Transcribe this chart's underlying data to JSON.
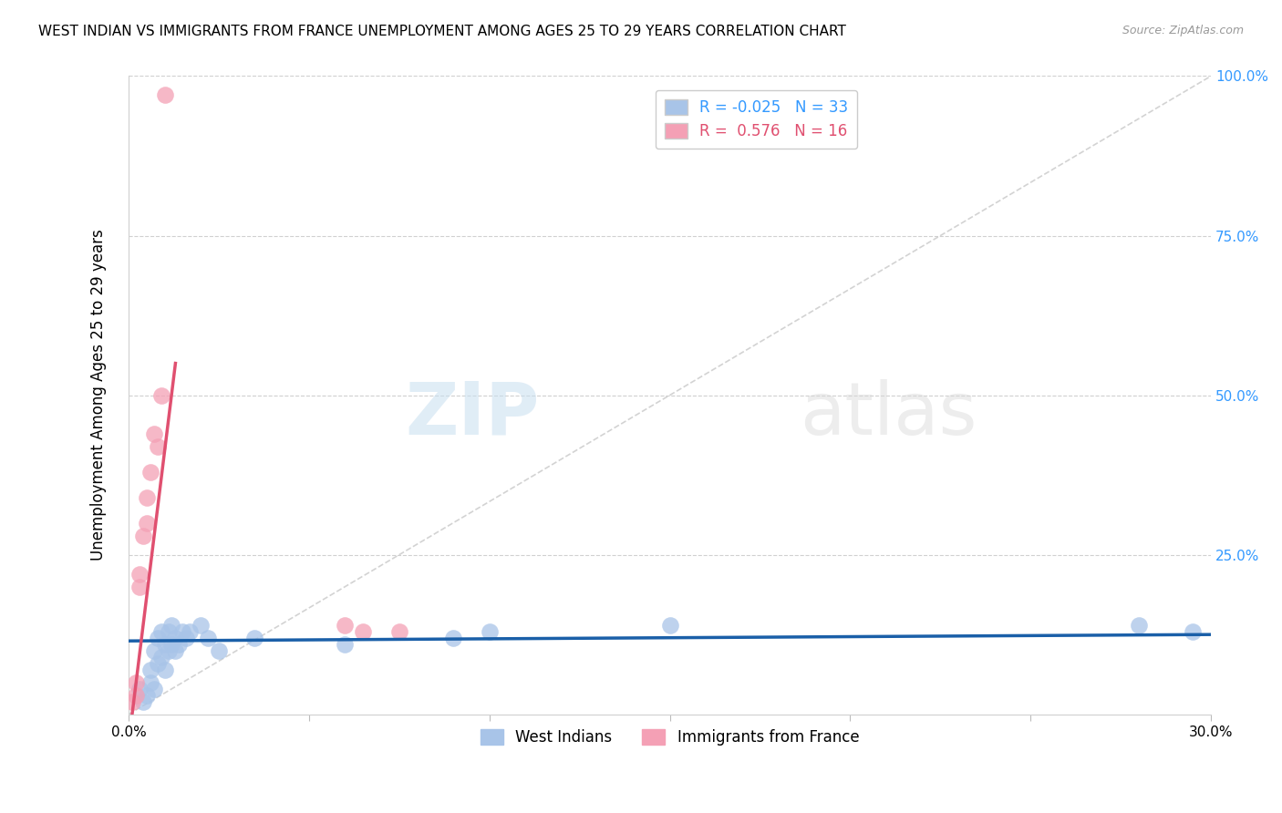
{
  "title": "WEST INDIAN VS IMMIGRANTS FROM FRANCE UNEMPLOYMENT AMONG AGES 25 TO 29 YEARS CORRELATION CHART",
  "source": "Source: ZipAtlas.com",
  "xlabel": "",
  "ylabel": "Unemployment Among Ages 25 to 29 years",
  "watermark_zip": "ZIP",
  "watermark_atlas": "atlas",
  "legend_labels": [
    "West Indians",
    "Immigrants from France"
  ],
  "west_indian_R": -0.025,
  "west_indian_N": 33,
  "france_R": 0.576,
  "france_N": 16,
  "west_indian_color": "#a8c4e8",
  "france_color": "#f4a0b5",
  "west_indian_line_color": "#1a5fa8",
  "france_line_color": "#e05070",
  "diagonal_line_color": "#c8c8c8",
  "xlim": [
    0.0,
    0.3
  ],
  "ylim": [
    0.0,
    1.0
  ],
  "x_ticks": [
    0.0,
    0.05,
    0.1,
    0.15,
    0.2,
    0.25,
    0.3
  ],
  "y_ticks_right": [
    0.0,
    0.25,
    0.5,
    0.75,
    1.0
  ],
  "y_tick_labels_right": [
    "",
    "25.0%",
    "50.0%",
    "75.0%",
    "100.0%"
  ],
  "west_indian_x": [
    0.003,
    0.004,
    0.005,
    0.006,
    0.006,
    0.007,
    0.007,
    0.008,
    0.008,
    0.009,
    0.009,
    0.01,
    0.01,
    0.011,
    0.011,
    0.012,
    0.012,
    0.013,
    0.013,
    0.014,
    0.015,
    0.016,
    0.017,
    0.02,
    0.022,
    0.025,
    0.035,
    0.06,
    0.09,
    0.1,
    0.15,
    0.28,
    0.295
  ],
  "west_indian_y": [
    0.04,
    0.02,
    0.03,
    0.05,
    0.07,
    0.04,
    0.1,
    0.08,
    0.12,
    0.09,
    0.13,
    0.07,
    0.11,
    0.1,
    0.13,
    0.11,
    0.14,
    0.1,
    0.12,
    0.11,
    0.13,
    0.12,
    0.13,
    0.14,
    0.12,
    0.1,
    0.12,
    0.11,
    0.12,
    0.13,
    0.14,
    0.14,
    0.13
  ],
  "france_x": [
    0.001,
    0.002,
    0.002,
    0.003,
    0.003,
    0.004,
    0.005,
    0.005,
    0.006,
    0.007,
    0.008,
    0.009,
    0.01,
    0.06,
    0.065,
    0.075
  ],
  "france_y": [
    0.02,
    0.03,
    0.05,
    0.2,
    0.22,
    0.28,
    0.3,
    0.34,
    0.38,
    0.44,
    0.42,
    0.5,
    0.97,
    0.14,
    0.13,
    0.13
  ],
  "west_indian_line_x": [
    0.0,
    0.3
  ],
  "west_indian_line_y": [
    0.115,
    0.125
  ],
  "france_line_x": [
    0.001,
    0.013
  ],
  "france_line_y": [
    0.0,
    0.55
  ]
}
